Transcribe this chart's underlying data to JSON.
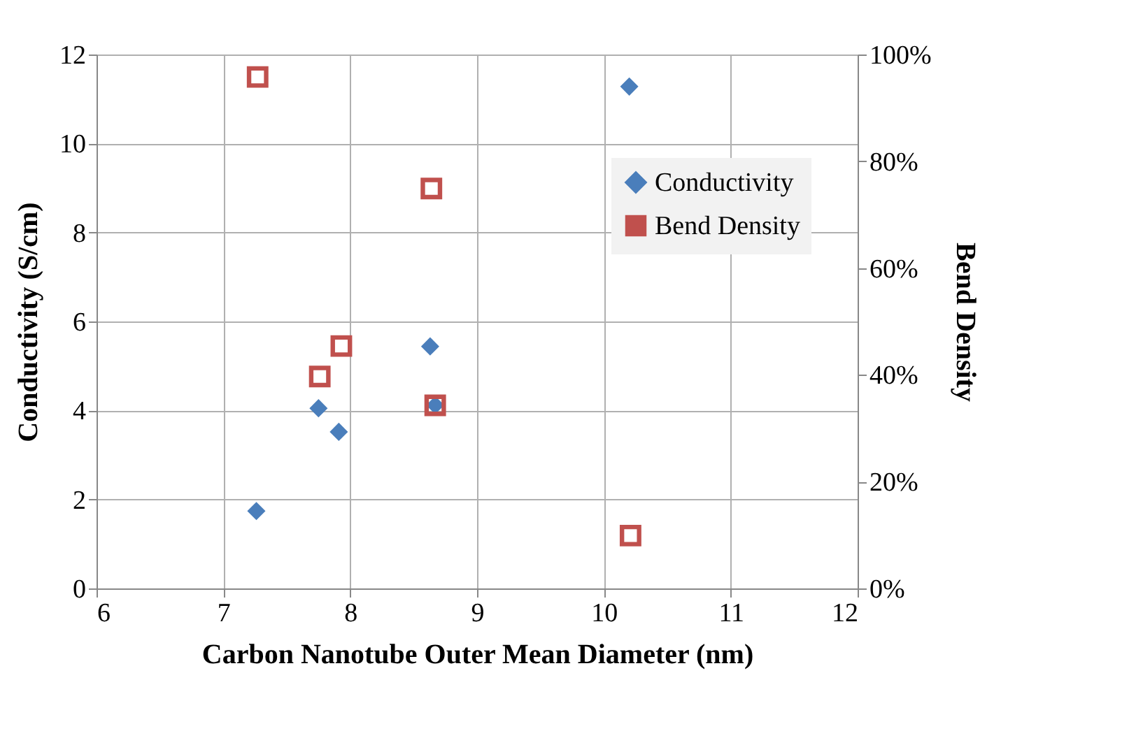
{
  "chart_data": {
    "type": "scatter",
    "xlabel": "Carbon Nanotube Outer Mean Diameter (nm)",
    "ylabel": "Conductivity (S/cm)",
    "y2label": "Bend Density",
    "xlim": [
      6,
      12
    ],
    "xticks": [
      6,
      7,
      8,
      9,
      10,
      11,
      12
    ],
    "ylim": [
      0,
      12
    ],
    "yticks": [
      0,
      2,
      4,
      6,
      8,
      10,
      12
    ],
    "y2lim": [
      0,
      100
    ],
    "y2ticks": [
      {
        "value": 0,
        "label": "0%"
      },
      {
        "value": 20,
        "label": "20%"
      },
      {
        "value": 40,
        "label": "40%"
      },
      {
        "value": 60,
        "label": "60%"
      },
      {
        "value": 80,
        "label": "80%"
      },
      {
        "value": 100,
        "label": "100%"
      }
    ],
    "grid": true,
    "legend": "top right",
    "series": [
      {
        "name": "Conductivity",
        "color": "#4a7ebb",
        "marker": "diamond",
        "x": [
          7.26,
          7.75,
          7.91,
          8.63,
          8.67,
          10.2
        ],
        "values": [
          1.74,
          4.05,
          3.52,
          5.44,
          4.12,
          11.28
        ]
      },
      {
        "name": "Bend Density",
        "color": "#c0504d",
        "marker": "square",
        "axis": "y2",
        "x": [
          7.27,
          7.76,
          7.93,
          8.64,
          8.67,
          10.21
        ],
        "values": [
          95.8,
          39.7,
          45.4,
          74.9,
          34.3,
          9.9
        ]
      }
    ]
  }
}
